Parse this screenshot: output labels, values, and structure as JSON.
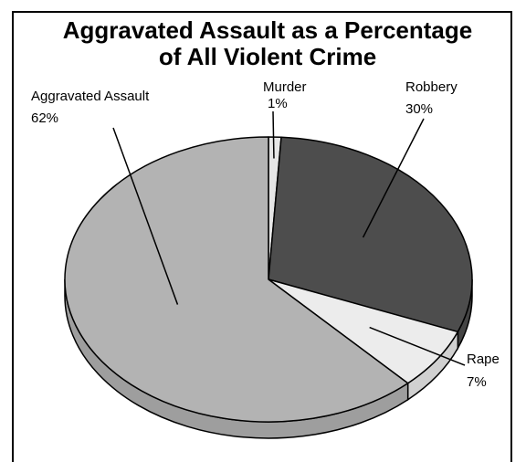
{
  "chart_data": {
    "type": "pie",
    "title_lines": [
      "Aggravated Assault as a Percentage",
      "of All Violent Crime"
    ],
    "slices": [
      {
        "name": "Murder",
        "label": "1%",
        "value": 1,
        "color": "#e6e6e6"
      },
      {
        "name": "Robbery",
        "label": "30%",
        "value": 30,
        "color": "#4d4d4d"
      },
      {
        "name": "Rape",
        "label": "7%",
        "value": 7,
        "color": "#ececec"
      },
      {
        "name": "Aggravated Assault",
        "label": "62%",
        "value": 62,
        "color": "#b3b3b3"
      }
    ],
    "legend": "none"
  }
}
